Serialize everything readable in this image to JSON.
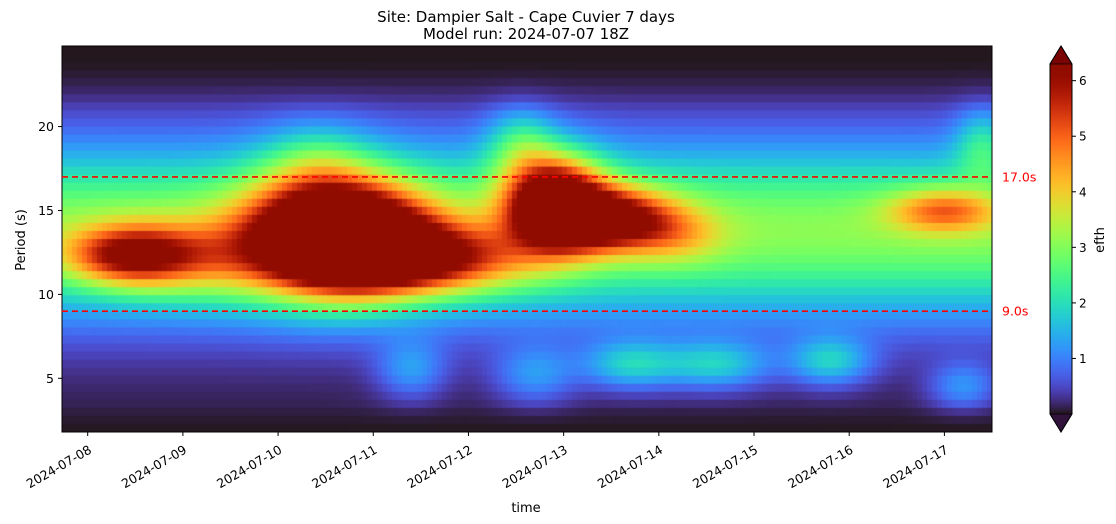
{
  "chart_data": {
    "type": "heatmap",
    "title_line1": "Site: Dampier Salt - Cape Cuvier 7 days",
    "title_line2": "Model run: 2024-07-07 18Z",
    "xlabel": "time",
    "ylabel": "Period (s)",
    "x_tick_labels": [
      "2024-07-08",
      "2024-07-09",
      "2024-07-10",
      "2024-07-11",
      "2024-07-12",
      "2024-07-13",
      "2024-07-14",
      "2024-07-15",
      "2024-07-16",
      "2024-07-17"
    ],
    "xlim_days": [
      -0.27,
      9.5
    ],
    "y_ticks": [
      5,
      10,
      15,
      20
    ],
    "ylim": [
      1.8,
      24.8
    ],
    "colorbar": {
      "label": "efth",
      "ticks": [
        1,
        2,
        3,
        4,
        5,
        6
      ],
      "range": [
        0,
        6.3
      ],
      "extend": "both",
      "colormap": "turbo"
    },
    "reference_lines": [
      {
        "value": 17.0,
        "label": "17.0s",
        "color": "#ff0000",
        "style": "dashed"
      },
      {
        "value": 9.0,
        "label": "9.0s",
        "color": "#ff0000",
        "style": "dashed"
      }
    ],
    "features": [
      {
        "t": 0.45,
        "p": 12.3,
        "st": 0.45,
        "sp": 1.2,
        "a": 3.2
      },
      {
        "t": 1.2,
        "p": 12.0,
        "st": 0.7,
        "sp": 1.6,
        "a": 1.6
      },
      {
        "t": 2.6,
        "p": 13.5,
        "st": 0.6,
        "sp": 2.3,
        "a": 7.0
      },
      {
        "t": 3.1,
        "p": 12.3,
        "st": 0.55,
        "sp": 1.5,
        "a": 3.0
      },
      {
        "t": 3.9,
        "p": 12.0,
        "st": 0.6,
        "sp": 1.4,
        "a": 2.2
      },
      {
        "t": 4.9,
        "p": 15.5,
        "st": 0.35,
        "sp": 1.9,
        "a": 5.5
      },
      {
        "t": 5.5,
        "p": 14.5,
        "st": 0.45,
        "sp": 1.3,
        "a": 4.0
      },
      {
        "t": 6.2,
        "p": 13.5,
        "st": 0.35,
        "sp": 1.2,
        "a": 1.0
      },
      {
        "t": 9.0,
        "p": 15.0,
        "st": 0.4,
        "sp": 0.9,
        "a": 2.2
      },
      {
        "t": 2.4,
        "p": 18.0,
        "st": 0.4,
        "sp": 1.6,
        "a": 1.0
      },
      {
        "t": 4.55,
        "p": 19.0,
        "st": 0.25,
        "sp": 1.5,
        "a": 1.3
      },
      {
        "t": 9.4,
        "p": 19.0,
        "st": 0.2,
        "sp": 1.5,
        "a": 1.2
      },
      {
        "t": 3.4,
        "p": 5.5,
        "st": 0.25,
        "sp": 1.2,
        "a": 1.0
      },
      {
        "t": 4.7,
        "p": 5.2,
        "st": 0.3,
        "sp": 1.2,
        "a": 1.0
      },
      {
        "t": 5.7,
        "p": 5.8,
        "st": 0.35,
        "sp": 1.0,
        "a": 1.5
      },
      {
        "t": 6.6,
        "p": 5.8,
        "st": 0.4,
        "sp": 1.0,
        "a": 1.5
      },
      {
        "t": 7.8,
        "p": 6.0,
        "st": 0.3,
        "sp": 1.0,
        "a": 1.5
      },
      {
        "t": 9.2,
        "p": 4.5,
        "st": 0.25,
        "sp": 1.0,
        "a": 1.0
      }
    ],
    "band": {
      "center": 13.8,
      "sigma": 3.6,
      "amp": 3.0
    }
  }
}
